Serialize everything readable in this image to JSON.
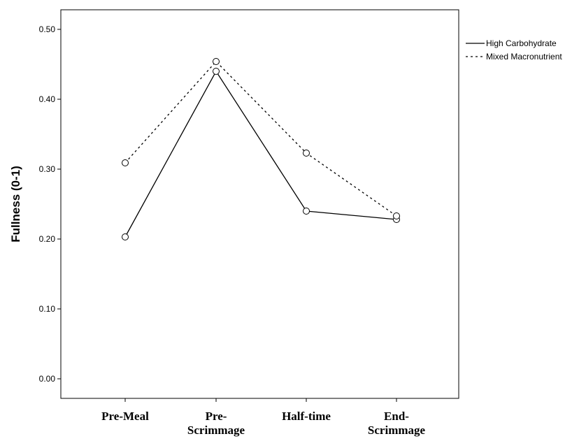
{
  "chart_data": {
    "type": "line",
    "categories": [
      "Pre-Meal",
      "Pre-Scrimmage",
      "Half-time",
      "End-Scrimmage"
    ],
    "category_lines": [
      [
        "Pre-Meal"
      ],
      [
        "Pre-",
        "Scrimmage"
      ],
      [
        "Half-time"
      ],
      [
        "End-",
        "Scrimmage"
      ]
    ],
    "series": [
      {
        "name": "High Carbohydrate",
        "values": [
          0.203,
          0.44,
          0.24,
          0.228
        ],
        "line_style": "solid"
      },
      {
        "name": "Mixed Macronutrient",
        "values": [
          0.309,
          0.454,
          0.323,
          0.233
        ],
        "line_style": "dotted"
      }
    ],
    "ylabel": "Fullness (0-1)",
    "xlabel": "",
    "ylim": [
      -0.028,
      0.528
    ],
    "yticks": [
      "0.00",
      "0.10",
      "0.20",
      "0.30",
      "0.40",
      "0.50"
    ],
    "grid": false,
    "legend": "right",
    "colors": {
      "line": "#000000",
      "marker_fill": "#ffffff",
      "background": "#ffffff"
    }
  }
}
